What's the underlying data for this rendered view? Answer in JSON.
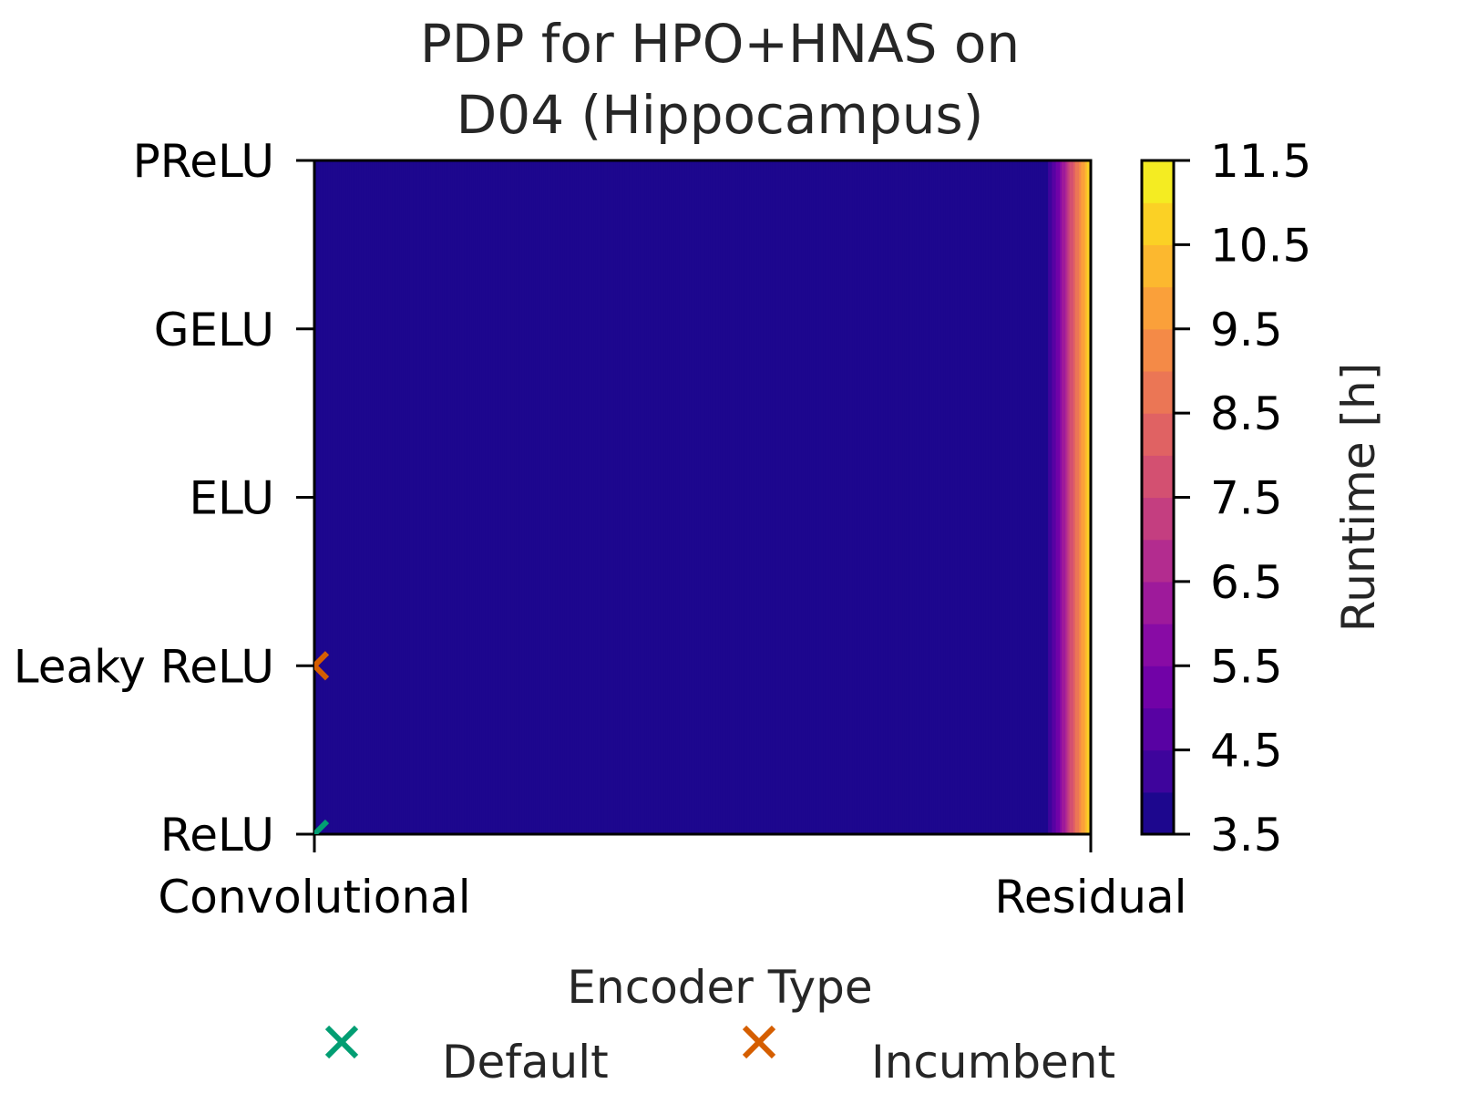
{
  "chart_data": {
    "type": "heatmap",
    "title_lines": [
      "PDP for HPO+HNAS on",
      "D04 (Hippocampus)"
    ],
    "xlabel": "Encoder Type",
    "ylabel": "",
    "x_categories": [
      "Convolutional",
      "Residual"
    ],
    "y_categories": [
      "ReLU",
      "Leaky ReLU",
      "ELU",
      "GELU",
      "PReLU"
    ],
    "surface": {
      "description_x_fraction": [
        0.0,
        0.94,
        0.96,
        0.98,
        1.0
      ],
      "runtime_h": [
        3.5,
        3.5,
        5.5,
        8.5,
        11.0
      ]
    },
    "colorbar": {
      "label": "Runtime [h]",
      "range": [
        3.5,
        11.5
      ],
      "ticks": [
        "3.5",
        "4.5",
        "5.5",
        "6.5",
        "7.5",
        "8.5",
        "9.5",
        "10.5",
        "11.5"
      ],
      "levels": 16,
      "colormap": "plasma"
    },
    "markers": [
      {
        "name": "Default",
        "x": "Convolutional",
        "y": "ReLU",
        "color": "#029e73"
      },
      {
        "name": "Incumbent",
        "x": "Convolutional",
        "y": "Leaky ReLU",
        "color": "#d55e00"
      }
    ],
    "legend": {
      "placement": "bottom",
      "items": [
        {
          "label": "Default",
          "color": "#029e73"
        },
        {
          "label": "Incumbent",
          "color": "#d55e00"
        }
      ]
    }
  }
}
